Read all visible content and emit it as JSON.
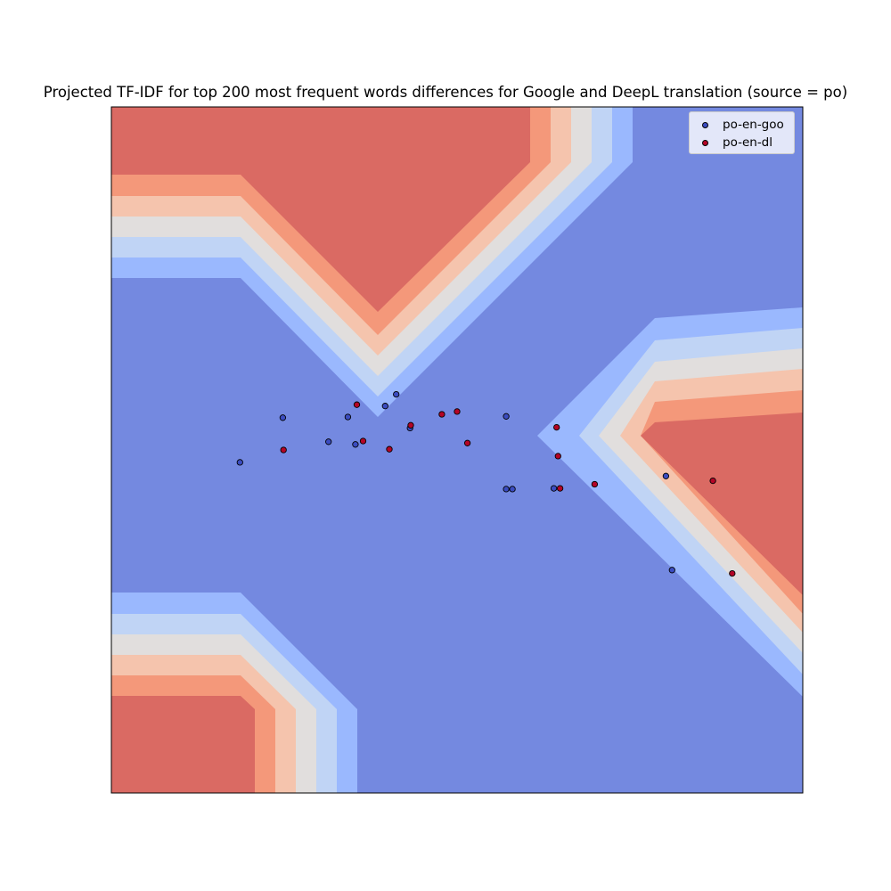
{
  "chart_data": {
    "type": "scatter",
    "title": "Projected TF-IDF for top 200 most frequent words differences for Google and DeepL translation (source = po)",
    "xlim": [
      0,
      100
    ],
    "ylim": [
      0,
      100
    ],
    "grid": false,
    "legend_position": "top-right",
    "series": [
      {
        "name": "po-en-goo",
        "color": "#3b4cc0",
        "points": [
          [
            18.6,
            48.2
          ],
          [
            24.8,
            54.7
          ],
          [
            31.4,
            51.2
          ],
          [
            34.2,
            54.8
          ],
          [
            35.3,
            50.8
          ],
          [
            39.6,
            56.4
          ],
          [
            41.2,
            58.1
          ],
          [
            43.2,
            53.2
          ],
          [
            57.1,
            54.9
          ],
          [
            57.1,
            44.3
          ],
          [
            58.0,
            44.3
          ],
          [
            64.0,
            44.4
          ],
          [
            80.2,
            46.2
          ],
          [
            81.1,
            32.5
          ]
        ]
      },
      {
        "name": "po-en-dl",
        "color": "#b40426",
        "points": [
          [
            24.9,
            50.0
          ],
          [
            35.5,
            56.6
          ],
          [
            36.4,
            51.3
          ],
          [
            40.2,
            50.1
          ],
          [
            43.3,
            53.6
          ],
          [
            47.8,
            55.2
          ],
          [
            50.0,
            55.6
          ],
          [
            51.5,
            51.0
          ],
          [
            64.4,
            53.3
          ],
          [
            64.6,
            49.1
          ],
          [
            64.9,
            44.4
          ],
          [
            69.9,
            45.0
          ],
          [
            87.0,
            45.5
          ],
          [
            89.8,
            32.0
          ]
        ]
      }
    ],
    "background": "coolwarm decision-region contour fill"
  },
  "colors": {
    "contour_levels": [
      "#7489e0",
      "#9ab8fe",
      "#c0d4f5",
      "#e1dedd",
      "#f5c4ad",
      "#f4987a",
      "#da6a63"
    ]
  }
}
